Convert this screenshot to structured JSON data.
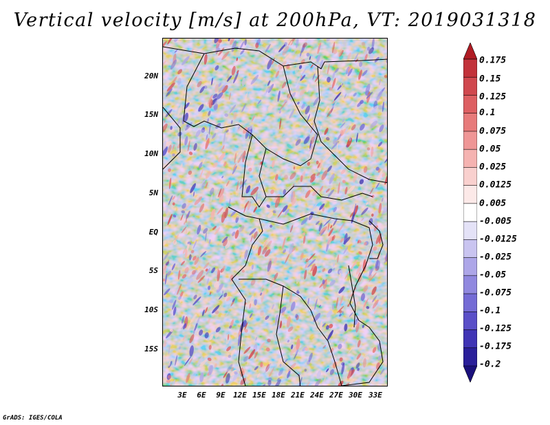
{
  "title": "Vertical velocity [m/s] at 200hPa, VT: 2019031318",
  "latitude_labels": [
    "20N",
    "15N",
    "10N",
    "5N",
    "EQ",
    "5S",
    "10S",
    "15S"
  ],
  "longitude_labels": [
    "3E",
    "6E",
    "9E",
    "12E",
    "15E",
    "18E",
    "21E",
    "24E",
    "27E",
    "30E",
    "33E"
  ],
  "colorbar": {
    "levels": [
      "0.175",
      "0.15",
      "0.125",
      "0.1",
      "0.075",
      "0.05",
      "0.025",
      "0.0125",
      "0.005",
      "-0.005",
      "-0.0125",
      "-0.025",
      "-0.05",
      "-0.075",
      "-0.1",
      "-0.125",
      "-0.175",
      "-0.2"
    ],
    "colors": [
      "#b01c24",
      "#c2323a",
      "#d0484e",
      "#dd5f62",
      "#e77a7a",
      "#ef9696",
      "#f5b3b1",
      "#f9d0ce",
      "#fce9e8",
      "#ffffff",
      "#e4e2f7",
      "#c9c4f0",
      "#ada6e8",
      "#9088df",
      "#746bd5",
      "#5a4fc8",
      "#4034b5",
      "#2a1f9a",
      "#1a107c"
    ]
  },
  "credit": "GrADS: IGES/COLA"
}
